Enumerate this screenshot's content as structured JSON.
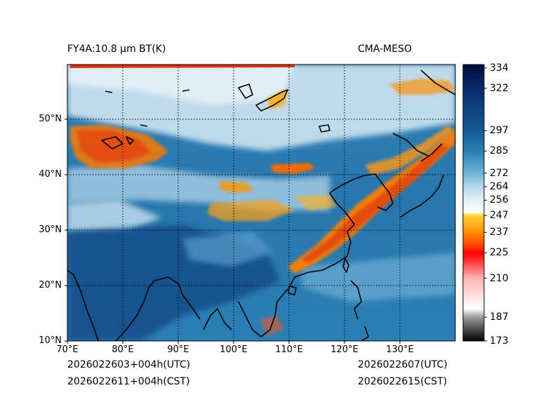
{
  "header": {
    "title": "FY4A:10.8 µm BT(K)",
    "source": "CMA-MESO"
  },
  "map": {
    "lat_ticks": [
      {
        "lat": 50,
        "label": "50°N"
      },
      {
        "lat": 40,
        "label": "40°N"
      },
      {
        "lat": 30,
        "label": "30°N"
      },
      {
        "lat": 20,
        "label": "20°N"
      },
      {
        "lat": 10,
        "label": "10°N"
      }
    ],
    "lon_ticks": [
      {
        "lon": 70,
        "label": "70°E"
      },
      {
        "lon": 80,
        "label": "80°E"
      },
      {
        "lon": 90,
        "label": "90°E"
      },
      {
        "lon": 100,
        "label": "100°E"
      },
      {
        "lon": 110,
        "label": "110°E"
      },
      {
        "lon": 120,
        "label": "120°E"
      },
      {
        "lon": 130,
        "label": "130°E"
      }
    ],
    "lon_range": [
      70,
      140
    ],
    "lat_range": [
      10,
      60
    ]
  },
  "colorbar": {
    "range": [
      173,
      336
    ],
    "labels": [
      334,
      322,
      297,
      285,
      272,
      264,
      256,
      247,
      237,
      225,
      210,
      187,
      173
    ],
    "stops": [
      {
        "v": 173,
        "c": "#000000"
      },
      {
        "v": 187,
        "c": "#9a9a9a"
      },
      {
        "v": 192,
        "c": "#ffffff"
      },
      {
        "v": 210,
        "c": "#ffb3b3"
      },
      {
        "v": 222,
        "c": "#ff2020"
      },
      {
        "v": 225,
        "c": "#ff0000"
      },
      {
        "v": 230,
        "c": "#ff4a00"
      },
      {
        "v": 237,
        "c": "#ff8c00"
      },
      {
        "v": 247,
        "c": "#ffd23a"
      },
      {
        "v": 249,
        "c": "#ffffff"
      },
      {
        "v": 256,
        "c": "#e3f0f8"
      },
      {
        "v": 264,
        "c": "#b6d6ea"
      },
      {
        "v": 272,
        "c": "#6fb2d6"
      },
      {
        "v": 285,
        "c": "#2a7fb3"
      },
      {
        "v": 297,
        "c": "#155a95"
      },
      {
        "v": 322,
        "c": "#0a2a6a"
      },
      {
        "v": 336,
        "c": "#020b3a"
      }
    ]
  },
  "footer": {
    "left_utc": "2026022603+004h(UTC)",
    "left_cst": "2026022611+004h(CST)",
    "right_utc": "2026022607(UTC)",
    "right_cst": "2026022615(CST)"
  }
}
